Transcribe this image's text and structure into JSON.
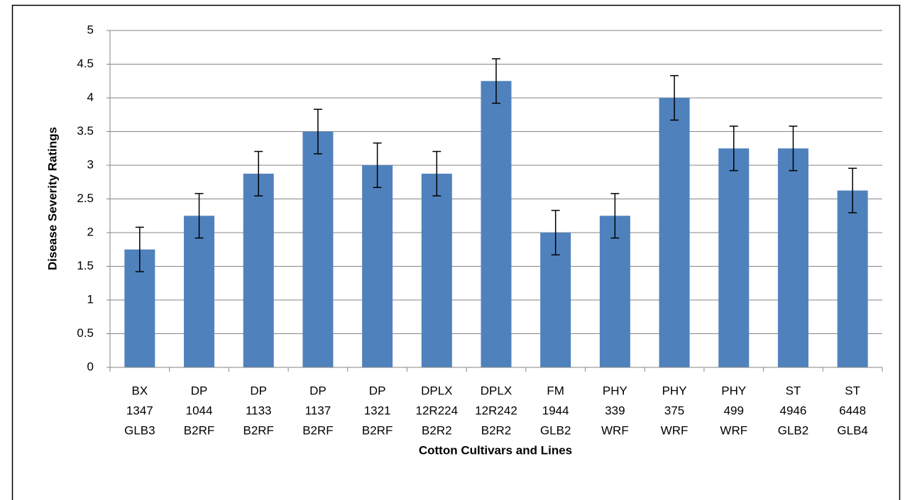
{
  "chart_data": {
    "type": "bar",
    "x_label": "Cotton Cultivars and Lines",
    "y_label": "Disease Severity Ratings",
    "categories": [
      [
        "BX",
        "1347",
        "GLB3"
      ],
      [
        "DP",
        "1044",
        "B2RF"
      ],
      [
        "DP",
        "1133",
        "B2RF"
      ],
      [
        "DP",
        "1137",
        "B2RF"
      ],
      [
        "DP",
        "1321",
        "B2RF"
      ],
      [
        "DPLX",
        "12R224",
        "B2R2"
      ],
      [
        "DPLX",
        "12R242",
        "B2R2"
      ],
      [
        "FM",
        "1944",
        "GLB2"
      ],
      [
        "PHY",
        "339",
        "WRF"
      ],
      [
        "PHY",
        "375",
        "WRF"
      ],
      [
        "PHY",
        "499",
        "WRF"
      ],
      [
        "ST",
        "4946",
        "GLB2"
      ],
      [
        "ST",
        "6448",
        "GLB4"
      ]
    ],
    "values": [
      1.75,
      2.25,
      2.875,
      3.5,
      3.0,
      2.875,
      4.25,
      2.0,
      2.25,
      4.0,
      3.25,
      3.25,
      2.625
    ],
    "errors": [
      0.33,
      0.33,
      0.33,
      0.33,
      0.33,
      0.33,
      0.33,
      0.33,
      0.33,
      0.33,
      0.33,
      0.33,
      0.33
    ],
    "color": "#4f81bd",
    "error_color": "#000000",
    "ylim": [
      0,
      5
    ],
    "yticks": [
      0,
      0.5,
      1,
      1.5,
      2,
      2.5,
      3,
      3.5,
      4,
      4.5,
      5
    ],
    "grid": true
  }
}
